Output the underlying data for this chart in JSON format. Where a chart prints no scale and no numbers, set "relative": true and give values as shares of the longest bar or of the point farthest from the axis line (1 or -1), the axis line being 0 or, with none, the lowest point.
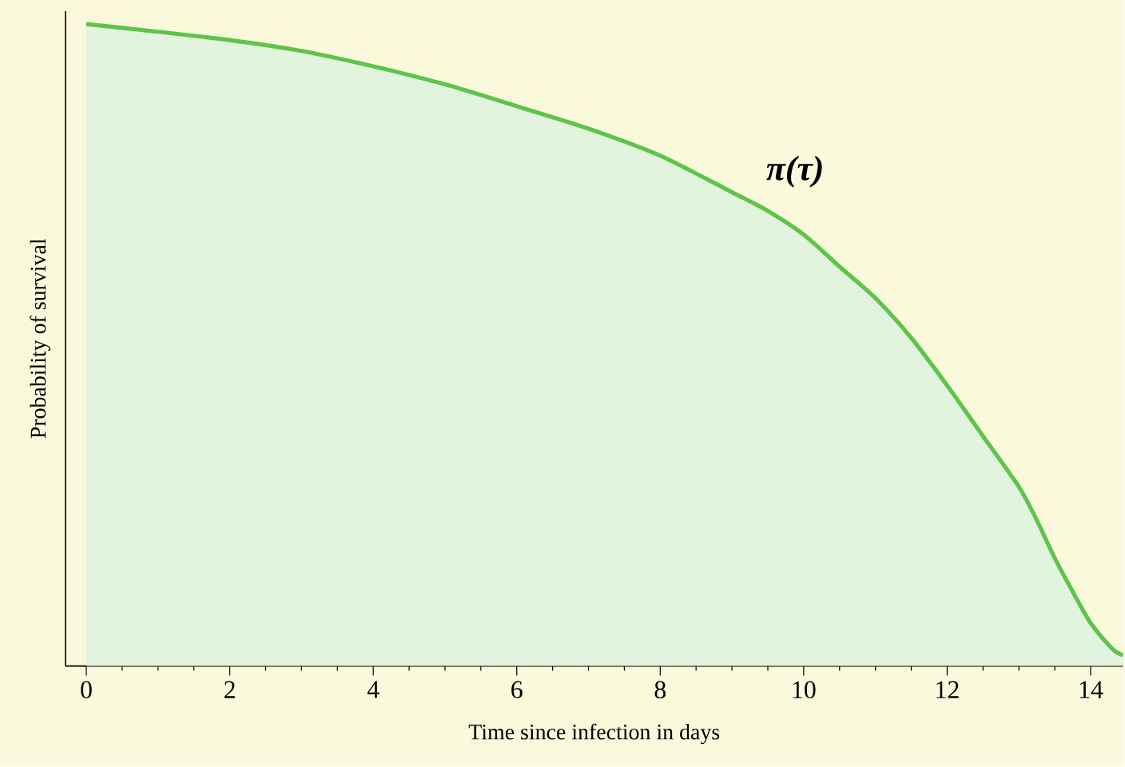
{
  "chart_data": {
    "type": "area",
    "relative": true,
    "xlabel": "Time since infection in days",
    "ylabel": "Probability of survival",
    "x": [
      0,
      1,
      2,
      3,
      4,
      5,
      6,
      7,
      8,
      9,
      9.5,
      10,
      10.5,
      11,
      11.5,
      12,
      12.5,
      13,
      13.25,
      13.5,
      13.75,
      14,
      14.3,
      14.45
    ],
    "series": [
      {
        "color": "#5ec44a",
        "values": [
          1.0,
          0.988,
          0.975,
          0.958,
          0.934,
          0.906,
          0.872,
          0.837,
          0.795,
          0.738,
          0.709,
          0.672,
          0.622,
          0.573,
          0.511,
          0.437,
          0.358,
          0.279,
          0.227,
          0.168,
          0.116,
          0.067,
          0.027,
          0.017
        ]
      }
    ],
    "xlim": [
      -0.29,
      14.45
    ],
    "xticks": [
      0,
      {
        "value": 0.5,
        "label": null
      },
      {
        "value": 1,
        "label": null
      },
      {
        "value": 1.5,
        "label": null
      },
      2,
      {
        "value": 2.5,
        "label": null
      },
      {
        "value": 3,
        "label": null
      },
      {
        "value": 3.5,
        "label": null
      },
      4,
      {
        "value": 4.5,
        "label": null
      },
      {
        "value": 5,
        "label": null
      },
      {
        "value": 5.5,
        "label": null
      },
      6,
      {
        "value": 6.5,
        "label": null
      },
      {
        "value": 7,
        "label": null
      },
      {
        "value": 7.5,
        "label": null
      },
      8,
      {
        "value": 8.5,
        "label": null
      },
      {
        "value": 9,
        "label": null
      },
      {
        "value": 9.5,
        "label": null
      },
      10,
      {
        "value": 10.5,
        "label": null
      },
      {
        "value": 11,
        "label": null
      },
      {
        "value": 11.5,
        "label": null
      },
      12,
      {
        "value": 12.5,
        "label": null
      },
      {
        "value": 13,
        "label": null
      },
      {
        "value": 13.5,
        "label": null
      },
      14
    ],
    "tick_labels": "x",
    "grid": false,
    "annotations": [
      "π(τ)"
    ]
  }
}
